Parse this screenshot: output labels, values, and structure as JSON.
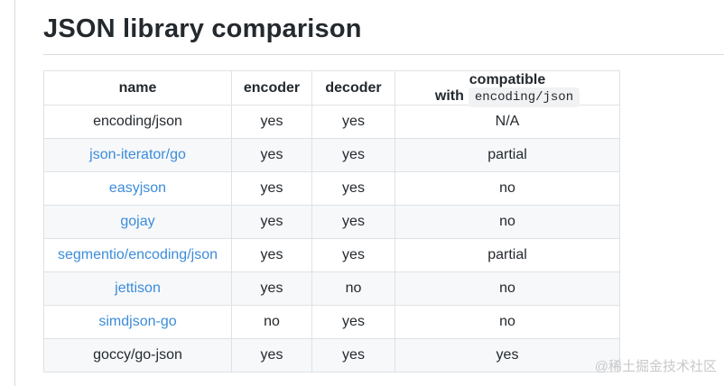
{
  "page": {
    "title": "JSON library comparison",
    "watermark": "@稀土掘金技术社区"
  },
  "table": {
    "headers": {
      "name": "name",
      "encoder": "encoder",
      "decoder": "decoder",
      "compatible_prefix": "compatible with",
      "compatible_code": "encoding/json"
    },
    "rows": [
      {
        "name": "encoding/json",
        "is_link": false,
        "encoder": "yes",
        "decoder": "yes",
        "compatible": "N/A"
      },
      {
        "name": "json-iterator/go",
        "is_link": true,
        "encoder": "yes",
        "decoder": "yes",
        "compatible": "partial"
      },
      {
        "name": "easyjson",
        "is_link": true,
        "encoder": "yes",
        "decoder": "yes",
        "compatible": "no"
      },
      {
        "name": "gojay",
        "is_link": true,
        "encoder": "yes",
        "decoder": "yes",
        "compatible": "no"
      },
      {
        "name": "segmentio/encoding/json",
        "is_link": true,
        "encoder": "yes",
        "decoder": "yes",
        "compatible": "partial"
      },
      {
        "name": "jettison",
        "is_link": true,
        "encoder": "yes",
        "decoder": "no",
        "compatible": "no"
      },
      {
        "name": "simdjson-go",
        "is_link": true,
        "encoder": "no",
        "decoder": "yes",
        "compatible": "no"
      },
      {
        "name": "goccy/go-json",
        "is_link": false,
        "encoder": "yes",
        "decoder": "yes",
        "compatible": "yes"
      }
    ]
  },
  "colors": {
    "link": "#3c8cd9",
    "row_alt_bg": "#f6f8fa",
    "border": "#dfe2e5",
    "title_text": "#24292e",
    "code_chip_bg": "#f0f2f4",
    "rule": "#d9d9d9",
    "watermark_text": "#c9c9c9"
  }
}
